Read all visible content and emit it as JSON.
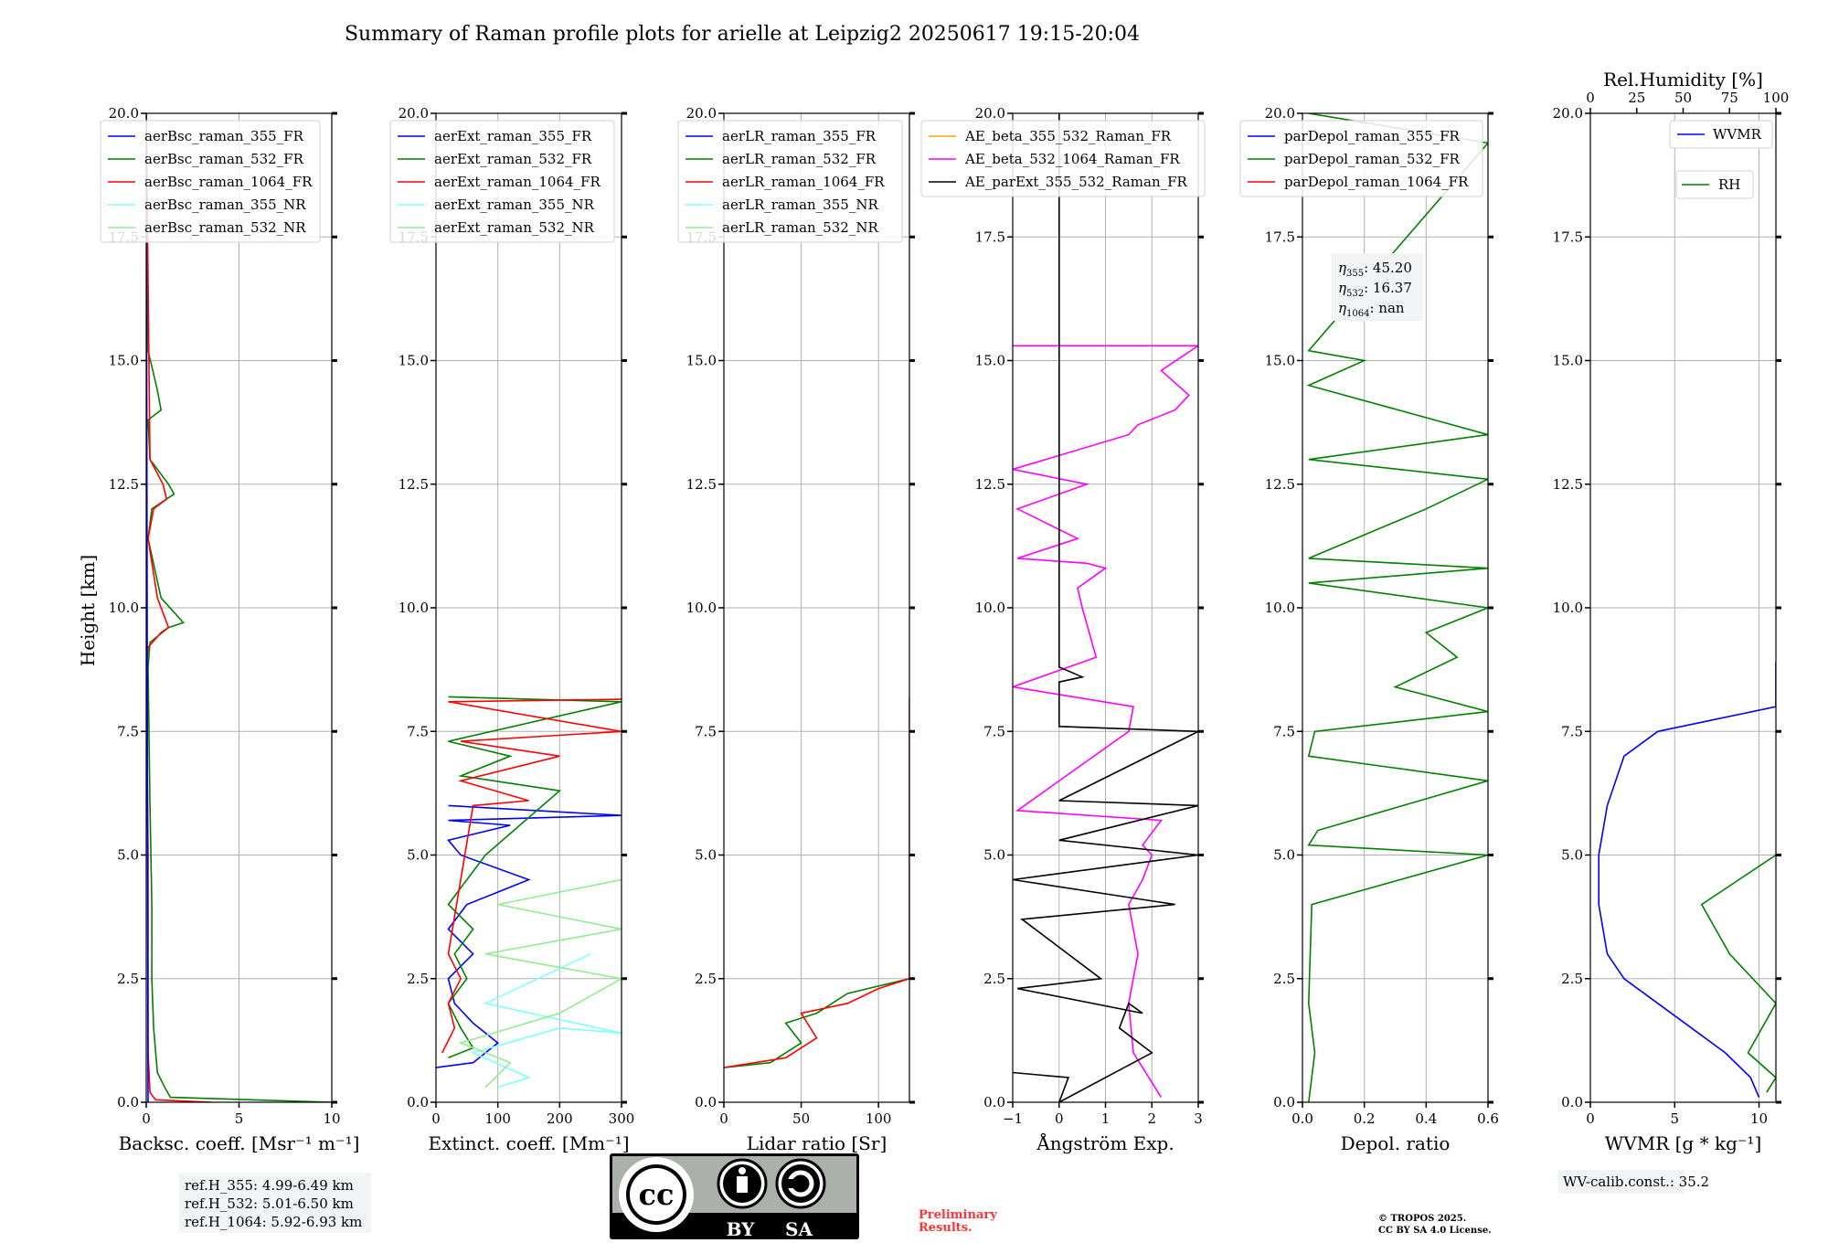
{
  "title": "Summary of Raman profile plots for arielle at Leipzig2 20250617 19:15-20:04",
  "ylabel": "Height [km]",
  "colors": {
    "blue": "#0000ff",
    "green": "#008000",
    "red": "#ff0000",
    "cyan": "#80ffff",
    "lightgreen": "#90ee90",
    "orange": "#ffa500",
    "magenta": "#ff00ff",
    "black": "#000000"
  },
  "panels": [
    {
      "xlabel": "Backsc. coeff. [Msr⁻¹ m⁻¹]",
      "xlim": [
        0,
        10
      ],
      "xticks": [
        "0",
        "5",
        "10"
      ],
      "xtickvals": [
        0,
        5,
        10
      ],
      "legend": [
        "aerBsc_raman_355_FR",
        "aerBsc_raman_532_FR",
        "aerBsc_raman_1064_FR",
        "aerBsc_raman_355_NR",
        "aerBsc_raman_532_NR"
      ],
      "legend_colors": [
        "blue",
        "green",
        "red",
        "cyan",
        "lightgreen"
      ]
    },
    {
      "xlabel": "Extinct. coeff. [Mm⁻¹]",
      "xlim": [
        0,
        300
      ],
      "xticks": [
        "0",
        "100",
        "200",
        "300"
      ],
      "xtickvals": [
        0,
        100,
        200,
        300
      ],
      "legend": [
        "aerExt_raman_355_FR",
        "aerExt_raman_532_FR",
        "aerExt_raman_1064_FR",
        "aerExt_raman_355_NR",
        "aerExt_raman_532_NR"
      ],
      "legend_colors": [
        "blue",
        "green",
        "red",
        "cyan",
        "lightgreen"
      ]
    },
    {
      "xlabel": "Lidar ratio [Sr]",
      "xlim": [
        0,
        120
      ],
      "xticks": [
        "0",
        "50",
        "100"
      ],
      "xtickvals": [
        0,
        50,
        100
      ],
      "legend": [
        "aerLR_raman_355_FR",
        "aerLR_raman_532_FR",
        "aerLR_raman_1064_FR",
        "aerLR_raman_355_NR",
        "aerLR_raman_532_NR"
      ],
      "legend_colors": [
        "blue",
        "green",
        "red",
        "cyan",
        "lightgreen"
      ]
    },
    {
      "xlabel": "Ångström Exp.",
      "xlim": [
        -1,
        3
      ],
      "xticks": [
        "−1",
        "0",
        "1",
        "2",
        "3"
      ],
      "xtickvals": [
        -1,
        0,
        1,
        2,
        3
      ],
      "legend": [
        "AE_beta_355_532_Raman_FR",
        "AE_beta_532_1064_Raman_FR",
        "AE_parExt_355_532_Raman_FR"
      ],
      "legend_colors": [
        "orange",
        "magenta",
        "black"
      ]
    },
    {
      "xlabel": "Depol. ratio",
      "xlim": [
        0,
        0.6
      ],
      "xticks": [
        "0.0",
        "0.2",
        "0.4",
        "0.6"
      ],
      "xtickvals": [
        0,
        0.2,
        0.4,
        0.6
      ],
      "legend": [
        "parDepol_raman_355_FR",
        "parDepol_raman_532_FR",
        "parDepol_raman_1064_FR"
      ],
      "legend_colors": [
        "blue",
        "green",
        "red"
      ]
    },
    {
      "xlabel": "WVMR [g * kg⁻¹]",
      "xlim": [
        0,
        11
      ],
      "xticks": [
        "0",
        "5",
        "10"
      ],
      "xtickvals": [
        0,
        5,
        10
      ],
      "legend": [
        "WVMR",
        "RH"
      ],
      "legend_colors": [
        "blue",
        "green"
      ],
      "top_label": "Rel.Humidity [%]",
      "top_ticks": [
        "0",
        "25",
        "50",
        "75",
        "100"
      ],
      "top_tickvals": [
        0,
        25,
        50,
        75,
        100
      ]
    }
  ],
  "yticks": [
    "0.0",
    "2.5",
    "5.0",
    "7.5",
    "10.0",
    "12.5",
    "15.0",
    "17.5",
    "20.0"
  ],
  "ytickvals": [
    0,
    2.5,
    5,
    7.5,
    10,
    12.5,
    15,
    17.5,
    20
  ],
  "ylim": [
    0,
    20
  ],
  "eta": {
    "e355": "45.20",
    "e532": "16.37",
    "e1064": "nan"
  },
  "refH": [
    "ref.H_355: 4.99-6.49 km",
    "ref.H_532: 5.01-6.50 km",
    "ref.H_1064: 5.92-6.93 km"
  ],
  "wv_calib": "WV-calib.const.: 35.2",
  "prelim": [
    "Preliminary",
    "Results."
  ],
  "copyright": [
    "© TROPOS 2025.",
    "CC BY SA 4.0 License."
  ],
  "license_badge": {
    "by": "BY",
    "sa": "SA",
    "cc": "cc"
  },
  "chart_data": [
    {
      "type": "line",
      "ylabel": "Height [km]",
      "ylim": [
        0,
        20
      ],
      "xlim": [
        0,
        10
      ],
      "xlabel": "Backsc. coeff. [Msr⁻¹ m⁻¹]",
      "series": [
        {
          "name": "aerBsc_raman_532_FR",
          "color": "green",
          "x": [
            10,
            1.3,
            1.0,
            0.6,
            0.4,
            0.3,
            0.3,
            0.2,
            0.1,
            0.2,
            1.2,
            2.0,
            0.8,
            0.1,
            0.3,
            1.5,
            1.2,
            0.2,
            0.1,
            0.8,
            0.6,
            0.1,
            0.0
          ],
          "y": [
            0.0,
            0.1,
            0.3,
            0.6,
            1.5,
            2.5,
            4.0,
            6.0,
            8.8,
            9.3,
            9.6,
            9.7,
            10.2,
            11.4,
            12.0,
            12.3,
            12.5,
            13.0,
            13.8,
            14.0,
            14.4,
            15.2,
            20.0
          ]
        },
        {
          "name": "aerBsc_raman_1064_FR",
          "color": "red",
          "x": [
            3.5,
            0.5,
            0.2,
            0.1,
            0.1,
            0.0,
            0.1,
            0.8,
            1.2,
            0.6,
            0.1,
            0.4,
            1.1,
            0.9,
            0.2,
            0.0
          ],
          "y": [
            0.0,
            0.05,
            0.2,
            1.0,
            5.0,
            8.8,
            9.2,
            9.5,
            9.6,
            10.2,
            11.4,
            12.0,
            12.2,
            12.5,
            13.0,
            20.0
          ]
        },
        {
          "name": "aerBsc_raman_355_FR",
          "color": "blue",
          "x": [
            0.1,
            0.0
          ],
          "y": [
            0.0,
            20.0
          ]
        }
      ]
    },
    {
      "type": "line",
      "ylabel": "Height [km]",
      "ylim": [
        0,
        20
      ],
      "xlim": [
        0,
        300
      ],
      "xlabel": "Extinct. coeff. [Mm⁻¹]",
      "series": [
        {
          "name": "aerExt_raman_355_FR",
          "color": "blue",
          "x": [
            0,
            60,
            100,
            60,
            30,
            20,
            60,
            20,
            50,
            150,
            40,
            20,
            120,
            20,
            300,
            20
          ],
          "y": [
            0.7,
            0.8,
            1.2,
            1.6,
            2.0,
            2.5,
            3.0,
            3.5,
            4.0,
            4.5,
            5.0,
            5.3,
            5.6,
            5.7,
            5.8,
            6.0
          ]
        },
        {
          "name": "aerExt_raman_532_FR",
          "color": "green",
          "x": [
            20,
            60,
            40,
            20,
            50,
            30,
            60,
            20,
            80,
            200,
            40,
            120,
            20,
            300,
            20
          ],
          "y": [
            0.9,
            1.1,
            1.5,
            2.0,
            2.5,
            3.0,
            3.5,
            4.0,
            5.0,
            6.3,
            6.6,
            7.0,
            7.3,
            8.1,
            8.2
          ]
        },
        {
          "name": "aerExt_raman_1064_FR",
          "color": "red",
          "x": [
            10,
            30,
            20,
            40,
            20,
            60,
            150,
            40,
            200,
            40,
            300,
            20,
            300
          ],
          "y": [
            1.0,
            1.5,
            2.0,
            2.5,
            3.0,
            6.0,
            6.1,
            6.5,
            7.0,
            7.3,
            7.5,
            8.1,
            8.15
          ]
        },
        {
          "name": "aerExt_raman_355_NR",
          "color": "cyan",
          "x": [
            100,
            150,
            60,
            200,
            300,
            80,
            250
          ],
          "y": [
            0.3,
            0.5,
            1.0,
            1.5,
            1.4,
            2.0,
            3.0
          ]
        },
        {
          "name": "aerExt_raman_532_NR",
          "color": "lightgreen",
          "x": [
            80,
            120,
            40,
            200,
            300,
            80,
            300,
            100,
            300
          ],
          "y": [
            0.3,
            0.8,
            1.2,
            1.8,
            2.5,
            3.0,
            3.5,
            4.0,
            4.5
          ]
        }
      ]
    },
    {
      "type": "line",
      "ylabel": "Height [km]",
      "ylim": [
        0,
        120
      ],
      "xlim": [
        0,
        120
      ],
      "xlabel": "Lidar ratio [Sr]",
      "series": [
        {
          "name": "aerLR_raman_532_FR",
          "color": "green",
          "x": [
            0,
            30,
            50,
            40,
            60,
            80,
            120
          ],
          "y": [
            0.7,
            0.8,
            1.2,
            1.6,
            1.8,
            2.2,
            2.5
          ]
        },
        {
          "name": "aerLR_raman_1064_FR",
          "color": "red",
          "x": [
            0,
            40,
            60,
            50,
            80,
            100,
            120,
            120
          ],
          "y": [
            0.7,
            0.9,
            1.3,
            1.8,
            2.0,
            2.3,
            2.5,
            8.2
          ]
        }
      ]
    },
    {
      "type": "line",
      "ylabel": "Height [km]",
      "ylim": [
        0,
        20
      ],
      "xlim": [
        -1,
        3
      ],
      "xlabel": "Ångström Exp.",
      "series": [
        {
          "name": "AE_beta_532_1064_Raman_FR",
          "color": "magenta",
          "x": [
            2.2,
            1.6,
            1.5,
            1.7,
            1.5,
            1.8,
            2.0,
            1.8,
            2.2,
            -0.9,
            1.5,
            1.6,
            -1,
            0.8,
            0.5,
            0.4,
            1.0,
            0.6,
            -0.9,
            0.4,
            -0.9,
            0.6,
            -1,
            1.5,
            1.7,
            2.5,
            2.8,
            2.2,
            3.0,
            -1
          ],
          "y": [
            0.1,
            1.0,
            2.0,
            3.0,
            4.0,
            4.5,
            5.0,
            5.2,
            5.7,
            5.9,
            7.5,
            8.0,
            8.4,
            9.0,
            10.0,
            10.4,
            10.8,
            10.9,
            11.0,
            11.4,
            12.0,
            12.5,
            12.8,
            13.5,
            13.7,
            14.0,
            14.3,
            14.8,
            15.3,
            15.3
          ]
        },
        {
          "name": "AE_parExt_355_532_Raman_FR",
          "color": "black",
          "x": [
            -1,
            0.2,
            0.0,
            2.0,
            1.3,
            1.5,
            1.8,
            -0.9,
            0.9,
            -0.8,
            2.5,
            -1,
            3,
            0,
            3,
            0,
            3,
            0,
            0,
            0.5,
            0,
            0
          ],
          "y": [
            0.6,
            0.5,
            0.0,
            1.0,
            1.5,
            2.0,
            1.8,
            2.3,
            2.5,
            3.7,
            4.0,
            4.5,
            5.0,
            5.3,
            6.0,
            6.1,
            7.5,
            7.6,
            8.5,
            8.6,
            8.8,
            20.0
          ]
        }
      ]
    },
    {
      "type": "line",
      "ylabel": "Height [km]",
      "ylim": [
        0,
        20
      ],
      "xlim": [
        0,
        0.6
      ],
      "xlabel": "Depol. ratio",
      "series": [
        {
          "name": "parDepol_raman_532_FR",
          "color": "green",
          "x": [
            0.02,
            0.04,
            0.02,
            0.03,
            0.6,
            0.02,
            0.05,
            0.6,
            0.02,
            0.04,
            0.6,
            0.3,
            0.5,
            0.4,
            0.6,
            0.02,
            0.6,
            0.02,
            0.4,
            0.6,
            0.02,
            0.6,
            0.02,
            0.2,
            0.02,
            0.6,
            0.02
          ],
          "y": [
            0.0,
            1.0,
            2.0,
            4.0,
            5.0,
            5.2,
            5.5,
            6.5,
            7.0,
            7.5,
            7.9,
            8.4,
            9.0,
            9.5,
            10.0,
            10.5,
            10.8,
            11.0,
            12.0,
            12.6,
            13.0,
            13.5,
            14.5,
            15.0,
            15.2,
            19.4,
            20.0
          ]
        }
      ]
    },
    {
      "type": "line",
      "ylabel": "Height [km]",
      "ylim": [
        0,
        20
      ],
      "xlim": [
        0,
        11
      ],
      "xlabel": "WVMR [g * kg⁻¹]",
      "series": [
        {
          "name": "WVMR",
          "color": "blue",
          "x": [
            10.0,
            9.5,
            8.0,
            6.0,
            4.0,
            2.0,
            1.0,
            0.5,
            0.5,
            1.0,
            2.0,
            4.0,
            11,
            11
          ],
          "y": [
            0.1,
            0.5,
            1.0,
            1.5,
            2.0,
            2.5,
            3.0,
            4.0,
            5.0,
            6.0,
            7.0,
            7.5,
            8.0,
            8.9
          ]
        },
        {
          "name": "RH",
          "color": "green",
          "x": [
            95,
            100,
            85,
            100,
            75,
            60,
            100
          ],
          "y": [
            0.2,
            0.5,
            1.0,
            2.0,
            3.0,
            4.0,
            5.0
          ]
        }
      ]
    }
  ]
}
